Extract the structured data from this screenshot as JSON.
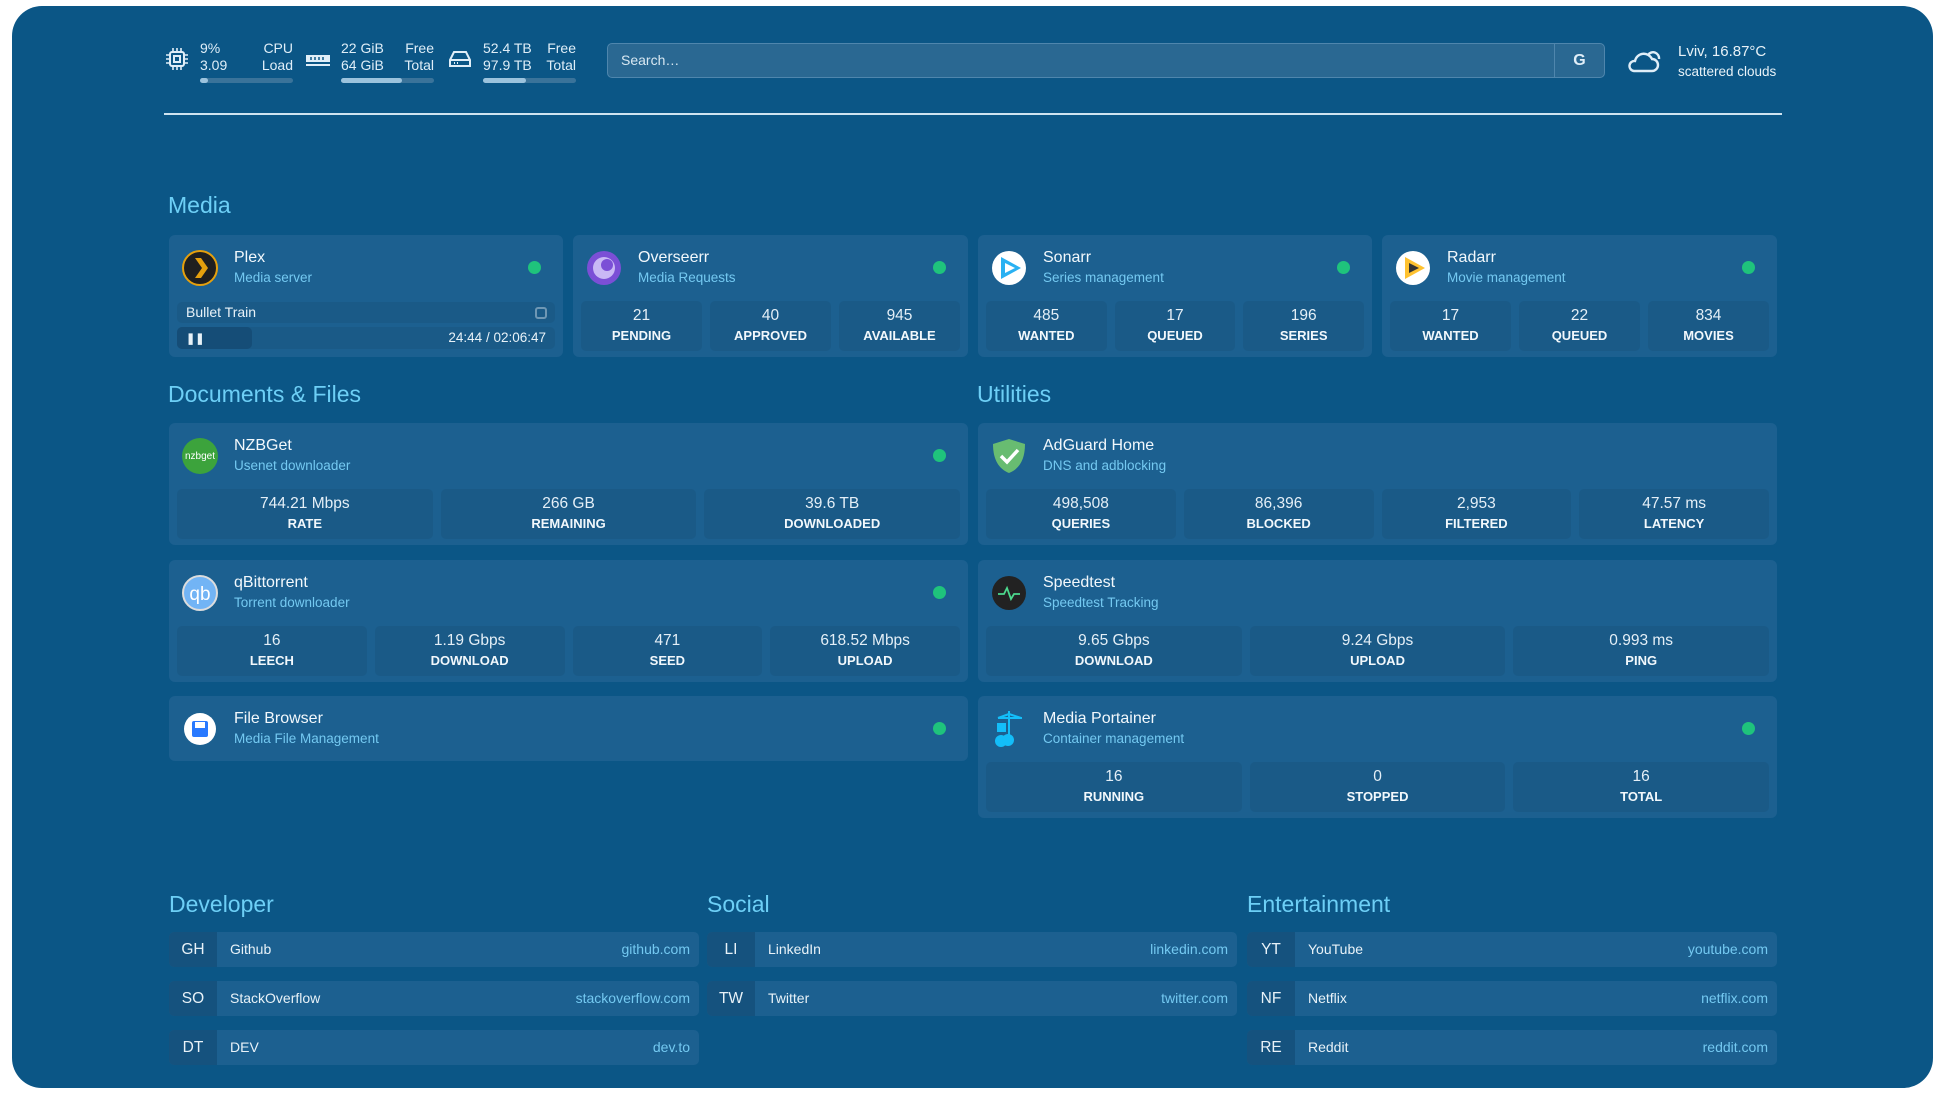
{
  "topbar": {
    "cpu": {
      "value1": "9%",
      "value2": "3.09",
      "label1": "CPU",
      "label2": "Load",
      "percent": 9
    },
    "memory": {
      "value1": "22 GiB",
      "value2": "64 GiB",
      "label1": "Free",
      "label2": "Total",
      "percent": 66
    },
    "disk": {
      "value1": "52.4 TB",
      "value2": "97.9 TB",
      "label1": "Free",
      "label2": "Total",
      "percent": 46
    },
    "search": {
      "placeholder": "Search…",
      "button": "G"
    },
    "weather": {
      "location": "Lviv, 16.87°C",
      "condition": "scattered clouds"
    }
  },
  "colors": {
    "background": "#0b5686",
    "card": "#1c6090",
    "accent": "#6dcff6",
    "status_ok": "#1fc37c"
  },
  "sections": {
    "media": "Media",
    "documents": "Documents & Files",
    "utilities": "Utilities",
    "developer": "Developer",
    "social": "Social",
    "entertainment": "Entertainment"
  },
  "plex": {
    "title": "Plex",
    "subtitle": "Media server",
    "now_playing": "Bullet Train",
    "progress": "24:44 / 02:06:47",
    "icon": "plex-icon"
  },
  "cards": [
    {
      "id": "overseerr",
      "title": "Overseerr",
      "subtitle": "Media Requests",
      "icon": "overseerr-icon",
      "stats": [
        {
          "v": "21",
          "l": "PENDING"
        },
        {
          "v": "40",
          "l": "APPROVED"
        },
        {
          "v": "945",
          "l": "AVAILABLE"
        }
      ]
    },
    {
      "id": "sonarr",
      "title": "Sonarr",
      "subtitle": "Series management",
      "icon": "sonarr-icon",
      "stats": [
        {
          "v": "485",
          "l": "WANTED"
        },
        {
          "v": "17",
          "l": "QUEUED"
        },
        {
          "v": "196",
          "l": "SERIES"
        }
      ]
    },
    {
      "id": "radarr",
      "title": "Radarr",
      "subtitle": "Movie management",
      "icon": "radarr-icon",
      "stats": [
        {
          "v": "17",
          "l": "WANTED"
        },
        {
          "v": "22",
          "l": "QUEUED"
        },
        {
          "v": "834",
          "l": "MOVIES"
        }
      ]
    },
    {
      "id": "nzbget",
      "title": "NZBGet",
      "subtitle": "Usenet downloader",
      "icon": "nzbget-icon",
      "icon_text": "nzbget",
      "stats": [
        {
          "v": "744.21 Mbps",
          "l": "RATE"
        },
        {
          "v": "266 GB",
          "l": "REMAINING"
        },
        {
          "v": "39.6 TB",
          "l": "DOWNLOADED"
        }
      ]
    },
    {
      "id": "qbittorrent",
      "title": "qBittorrent",
      "subtitle": "Torrent downloader",
      "icon": "qbittorrent-icon",
      "icon_text": "qb",
      "stats": [
        {
          "v": "16",
          "l": "LEECH"
        },
        {
          "v": "1.19 Gbps",
          "l": "DOWNLOAD"
        },
        {
          "v": "471",
          "l": "SEED"
        },
        {
          "v": "618.52 Mbps",
          "l": "UPLOAD"
        }
      ]
    },
    {
      "id": "filebrowser",
      "title": "File Browser",
      "subtitle": "Media File Management",
      "icon": "file-browser-icon",
      "stats": []
    },
    {
      "id": "adguard",
      "title": "AdGuard Home",
      "subtitle": "DNS and adblocking",
      "icon": "adguard-shield-icon",
      "nodot": true,
      "stats": [
        {
          "v": "498,508",
          "l": "QUERIES"
        },
        {
          "v": "86,396",
          "l": "BLOCKED"
        },
        {
          "v": "2,953",
          "l": "FILTERED"
        },
        {
          "v": "47.57 ms",
          "l": "LATENCY"
        }
      ]
    },
    {
      "id": "speedtest",
      "title": "Speedtest",
      "subtitle": "Speedtest Tracking",
      "icon": "speedtest-icon",
      "nodot": true,
      "stats": [
        {
          "v": "9.65 Gbps",
          "l": "DOWNLOAD"
        },
        {
          "v": "9.24 Gbps",
          "l": "UPLOAD"
        },
        {
          "v": "0.993 ms",
          "l": "PING"
        }
      ]
    },
    {
      "id": "portainer",
      "title": "Media Portainer",
      "subtitle": "Container management",
      "icon": "portainer-icon",
      "stats": [
        {
          "v": "16",
          "l": "RUNNING"
        },
        {
          "v": "0",
          "l": "STOPPED"
        },
        {
          "v": "16",
          "l": "TOTAL"
        }
      ]
    }
  ],
  "bookmarks": [
    {
      "group": "developer",
      "items": [
        {
          "abbr": "GH",
          "name": "Github",
          "url": "github.com"
        },
        {
          "abbr": "SO",
          "name": "StackOverflow",
          "url": "stackoverflow.com"
        },
        {
          "abbr": "DT",
          "name": "DEV",
          "url": "dev.to"
        }
      ]
    },
    {
      "group": "social",
      "items": [
        {
          "abbr": "LI",
          "name": "LinkedIn",
          "url": "linkedin.com"
        },
        {
          "abbr": "TW",
          "name": "Twitter",
          "url": "twitter.com"
        }
      ]
    },
    {
      "group": "entertainment",
      "items": [
        {
          "abbr": "YT",
          "name": "YouTube",
          "url": "youtube.com"
        },
        {
          "abbr": "NF",
          "name": "Netflix",
          "url": "netflix.com"
        },
        {
          "abbr": "RE",
          "name": "Reddit",
          "url": "reddit.com"
        }
      ]
    }
  ]
}
